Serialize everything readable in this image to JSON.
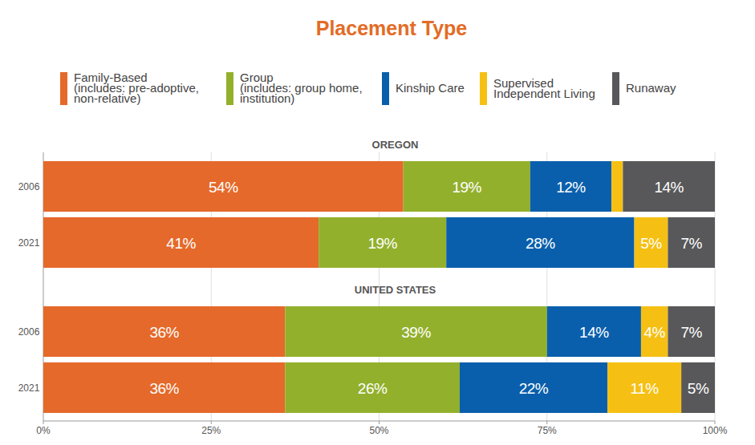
{
  "title": "Placement Type",
  "chart_data": [
    {
      "type": "bar",
      "title": "OREGON",
      "orientation": "horizontal",
      "stacked": true,
      "data_labels": true,
      "grid": true,
      "legend": "top",
      "tick_labels": "y",
      "categories": [
        "2006",
        "2021"
      ],
      "xlim": [
        0,
        100
      ],
      "xticks": [
        0,
        25,
        50,
        75,
        100
      ],
      "series": [
        {
          "name": "Family-Based\n(includes: pre-adoptive,\nnon-relative)",
          "color": "#e5692a",
          "values": [
            53.6,
            41
          ],
          "value_labels": [
            "54%",
            "41%"
          ]
        },
        {
          "name": "Group\n(includes: group home,\ninstitution)",
          "color": "#93b02c",
          "values": [
            18.9,
            19
          ],
          "value_labels": [
            "19%",
            "19%"
          ]
        },
        {
          "name": "Kinship Care",
          "color": "#0a5fac",
          "values": [
            12.1,
            28
          ],
          "value_labels": [
            "12%",
            "28%"
          ]
        },
        {
          "name": "Supervised\nIndependent Living",
          "color": "#f5c013",
          "values": [
            1.7,
            5
          ],
          "value_labels": [
            null,
            "5%"
          ]
        },
        {
          "name": "Runaway",
          "color": "#58585a",
          "values": [
            13.7,
            7
          ],
          "value_labels": [
            "14%",
            "7%"
          ]
        }
      ]
    },
    {
      "type": "bar",
      "title": "UNITED STATES",
      "orientation": "horizontal",
      "stacked": true,
      "data_labels": true,
      "grid": true,
      "categories": [
        "2006",
        "2021"
      ],
      "xlim": [
        0,
        100
      ],
      "xticks": [
        {
          "value": 0,
          "label": "0%"
        },
        {
          "value": 25,
          "label": "25%"
        },
        {
          "value": 50,
          "label": "50%"
        },
        {
          "value": 75,
          "label": "75%"
        },
        {
          "value": 100,
          "label": "100%"
        }
      ],
      "series": [
        {
          "color": "#e5692a",
          "values": [
            36,
            36
          ],
          "value_labels": [
            "36%",
            "36%"
          ]
        },
        {
          "color": "#93b02c",
          "values": [
            39,
            26
          ],
          "value_labels": [
            "39%",
            "26%"
          ]
        },
        {
          "color": "#0a5fac",
          "values": [
            14,
            22
          ],
          "value_labels": [
            "14%",
            "22%"
          ]
        },
        {
          "color": "#f5c013",
          "values": [
            4,
            11
          ],
          "value_labels": [
            "4%",
            "11%"
          ]
        },
        {
          "color": "#58585a",
          "values": [
            7,
            5
          ],
          "value_labels": [
            "7%",
            "5%"
          ]
        }
      ]
    }
  ]
}
